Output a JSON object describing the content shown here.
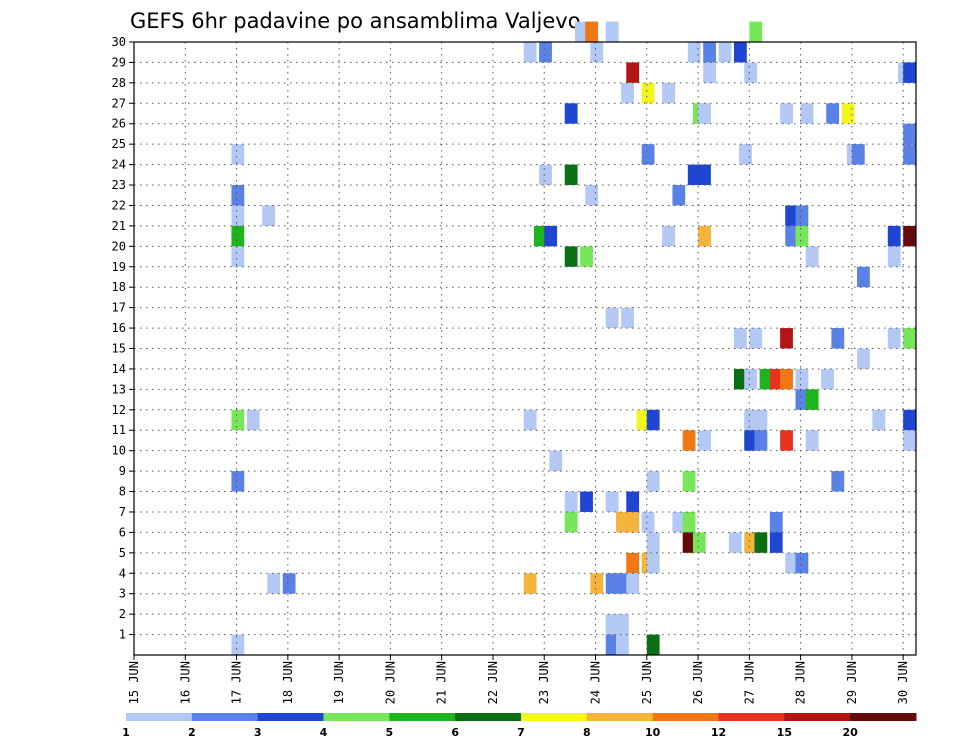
{
  "chart_data": {
    "type": "heatmap",
    "title": "GEFS 6hr padavine po ansamblima Valjevo",
    "x_tick_labels": [
      "15 JUN",
      "16 JUN",
      "17 JUN",
      "18 JUN",
      "19 JUN",
      "20 JUN",
      "21 JUN",
      "22 JUN",
      "23 JUN",
      "24 JUN",
      "25 JUN",
      "26 JUN",
      "27 JUN",
      "28 JUN",
      "29 JUN",
      "30 JUN"
    ],
    "y_tick_labels": [
      "1",
      "2",
      "3",
      "4",
      "5",
      "6",
      "7",
      "8",
      "9",
      "10",
      "11",
      "12",
      "13",
      "14",
      "15",
      "16",
      "17",
      "18",
      "19",
      "20",
      "21",
      "22",
      "23",
      "24",
      "25",
      "26",
      "27",
      "28",
      "29",
      "30"
    ],
    "x_range_days": [
      15,
      30.25
    ],
    "y_range": [
      0,
      30
    ],
    "grid": true,
    "colorbar": {
      "labels": [
        "1",
        "2",
        "3",
        "4",
        "5",
        "6",
        "7",
        "8",
        "10",
        "12",
        "15",
        "20"
      ],
      "colors": [
        "#b4c8f5",
        "#5a82e6",
        "#1e46d2",
        "#78e65a",
        "#1eb41e",
        "#0a6e14",
        "#f5f51e",
        "#f5b43c",
        "#f07814",
        "#e6321e",
        "#b41414",
        "#640a0a"
      ]
    },
    "cells": [
      [
        30,
        23.6,
        "#b4c8f5"
      ],
      [
        30,
        23.8,
        "#f07814"
      ],
      [
        30,
        24.2,
        "#b4c8f5"
      ],
      [
        30,
        27.0,
        "#78e65a"
      ],
      [
        29,
        22.6,
        "#b4c8f5"
      ],
      [
        29,
        22.9,
        "#5a82e6"
      ],
      [
        29,
        23.9,
        "#b4c8f5"
      ],
      [
        29,
        25.8,
        "#b4c8f5"
      ],
      [
        29,
        26.1,
        "#5a82e6"
      ],
      [
        29,
        26.4,
        "#b4c8f5"
      ],
      [
        29,
        26.7,
        "#1e46d2"
      ],
      [
        28,
        24.6,
        "#b41414"
      ],
      [
        28,
        26.1,
        "#b4c8f5"
      ],
      [
        28,
        26.9,
        "#b4c8f5"
      ],
      [
        28,
        29.9,
        "#b4c8f5"
      ],
      [
        28,
        30.0,
        "#1e46d2"
      ],
      [
        27,
        24.5,
        "#b4c8f5"
      ],
      [
        27,
        24.9,
        "#f5f51e"
      ],
      [
        27,
        25.3,
        "#b4c8f5"
      ],
      [
        26,
        23.4,
        "#1e46d2"
      ],
      [
        26,
        25.9,
        "#78e65a"
      ],
      [
        26,
        26.0,
        "#b4c8f5"
      ],
      [
        26,
        27.6,
        "#b4c8f5"
      ],
      [
        26,
        28.0,
        "#b4c8f5"
      ],
      [
        26,
        28.5,
        "#5a82e6"
      ],
      [
        26,
        28.8,
        "#f5f51e"
      ],
      [
        25,
        30.0,
        "#5a82e6"
      ],
      [
        24,
        16.9,
        "#b4c8f5"
      ],
      [
        24,
        24.9,
        "#5a82e6"
      ],
      [
        24,
        26.8,
        "#b4c8f5"
      ],
      [
        24,
        28.9,
        "#b4c8f5"
      ],
      [
        24,
        29.0,
        "#5a82e6"
      ],
      [
        24,
        30.0,
        "#5a82e6"
      ],
      [
        23,
        22.9,
        "#b4c8f5"
      ],
      [
        23,
        23.4,
        "#0a6e14"
      ],
      [
        23,
        25.8,
        "#1e46d2"
      ],
      [
        23,
        26.0,
        "#1e46d2"
      ],
      [
        22,
        16.9,
        "#5a82e6"
      ],
      [
        22,
        23.8,
        "#b4c8f5"
      ],
      [
        22,
        25.5,
        "#5a82e6"
      ],
      [
        21,
        16.9,
        "#b4c8f5"
      ],
      [
        21,
        17.5,
        "#b4c8f5"
      ],
      [
        21,
        27.7,
        "#1e46d2"
      ],
      [
        21,
        27.9,
        "#5a82e6"
      ],
      [
        20,
        16.9,
        "#1eb41e"
      ],
      [
        20,
        22.8,
        "#1eb41e"
      ],
      [
        20,
        23.0,
        "#1e46d2"
      ],
      [
        20,
        25.3,
        "#b4c8f5"
      ],
      [
        20,
        26.0,
        "#f5b43c"
      ],
      [
        20,
        27.7,
        "#5a82e6"
      ],
      [
        20,
        27.9,
        "#78e65a"
      ],
      [
        20,
        29.7,
        "#1e46d2"
      ],
      [
        20,
        30.0,
        "#640a0a"
      ],
      [
        19,
        16.9,
        "#b4c8f5"
      ],
      [
        19,
        23.4,
        "#0a6e14"
      ],
      [
        19,
        23.7,
        "#78e65a"
      ],
      [
        19,
        28.1,
        "#b4c8f5"
      ],
      [
        19,
        29.7,
        "#b4c8f5"
      ],
      [
        18,
        29.1,
        "#5a82e6"
      ],
      [
        16,
        24.2,
        "#b4c8f5"
      ],
      [
        16,
        24.5,
        "#b4c8f5"
      ],
      [
        15,
        26.7,
        "#b4c8f5"
      ],
      [
        15,
        27.0,
        "#b4c8f5"
      ],
      [
        15,
        27.6,
        "#b41414"
      ],
      [
        15,
        28.6,
        "#5a82e6"
      ],
      [
        15,
        29.7,
        "#b4c8f5"
      ],
      [
        15,
        30.0,
        "#78e65a"
      ],
      [
        14,
        29.1,
        "#b4c8f5"
      ],
      [
        13,
        26.7,
        "#0a6e14"
      ],
      [
        13,
        26.9,
        "#b4c8f5"
      ],
      [
        13,
        27.2,
        "#1eb41e"
      ],
      [
        13,
        27.4,
        "#e6321e"
      ],
      [
        13,
        27.6,
        "#f07814"
      ],
      [
        13,
        27.9,
        "#b4c8f5"
      ],
      [
        13,
        28.4,
        "#b4c8f5"
      ],
      [
        12,
        27.9,
        "#5a82e6"
      ],
      [
        12,
        28.1,
        "#1eb41e"
      ],
      [
        11,
        16.9,
        "#78e65a"
      ],
      [
        11,
        17.2,
        "#b4c8f5"
      ],
      [
        11,
        22.6,
        "#b4c8f5"
      ],
      [
        11,
        24.8,
        "#f5f51e"
      ],
      [
        11,
        25.0,
        "#1e46d2"
      ],
      [
        11,
        26.9,
        "#b4c8f5"
      ],
      [
        11,
        27.1,
        "#b4c8f5"
      ],
      [
        11,
        29.4,
        "#b4c8f5"
      ],
      [
        11,
        30.0,
        "#1e46d2"
      ],
      [
        10,
        25.7,
        "#f07814"
      ],
      [
        10,
        26.0,
        "#b4c8f5"
      ],
      [
        10,
        26.9,
        "#1e46d2"
      ],
      [
        10,
        27.1,
        "#5a82e6"
      ],
      [
        10,
        27.6,
        "#e6321e"
      ],
      [
        10,
        28.1,
        "#b4c8f5"
      ],
      [
        10,
        30.0,
        "#b4c8f5"
      ],
      [
        9,
        23.1,
        "#b4c8f5"
      ],
      [
        8,
        16.9,
        "#5a82e6"
      ],
      [
        8,
        25.0,
        "#b4c8f5"
      ],
      [
        8,
        25.7,
        "#78e65a"
      ],
      [
        8,
        28.6,
        "#5a82e6"
      ],
      [
        7,
        23.4,
        "#b4c8f5"
      ],
      [
        7,
        23.7,
        "#1e46d2"
      ],
      [
        7,
        24.2,
        "#b4c8f5"
      ],
      [
        7,
        24.6,
        "#1e46d2"
      ],
      [
        6,
        23.4,
        "#78e65a"
      ],
      [
        6,
        24.4,
        "#f5b43c"
      ],
      [
        6,
        24.6,
        "#f5b43c"
      ],
      [
        6,
        24.9,
        "#b4c8f5"
      ],
      [
        6,
        25.5,
        "#b4c8f5"
      ],
      [
        6,
        25.7,
        "#78e65a"
      ],
      [
        6,
        27.4,
        "#5a82e6"
      ],
      [
        5,
        25.0,
        "#b4c8f5"
      ],
      [
        5,
        25.7,
        "#640a0a"
      ],
      [
        5,
        25.9,
        "#78e65a"
      ],
      [
        5,
        26.6,
        "#b4c8f5"
      ],
      [
        5,
        26.9,
        "#f5b43c"
      ],
      [
        5,
        27.1,
        "#0a6e14"
      ],
      [
        5,
        27.4,
        "#1e46d2"
      ],
      [
        4,
        24.6,
        "#f07814"
      ],
      [
        4,
        24.9,
        "#f5b43c"
      ],
      [
        4,
        25.0,
        "#b4c8f5"
      ],
      [
        4,
        27.7,
        "#b4c8f5"
      ],
      [
        4,
        27.9,
        "#5a82e6"
      ],
      [
        3,
        17.6,
        "#b4c8f5"
      ],
      [
        3,
        17.9,
        "#5a82e6"
      ],
      [
        3,
        22.6,
        "#f5b43c"
      ],
      [
        3,
        23.9,
        "#f5b43c"
      ],
      [
        3,
        24.2,
        "#5a82e6"
      ],
      [
        3,
        24.4,
        "#5a82e6"
      ],
      [
        3,
        24.6,
        "#b4c8f5"
      ],
      [
        1,
        24.2,
        "#b4c8f5"
      ],
      [
        1,
        24.4,
        "#b4c8f5"
      ],
      [
        0,
        16.9,
        "#b4c8f5"
      ],
      [
        0,
        24.2,
        "#5a82e6"
      ],
      [
        0,
        24.4,
        "#b4c8f5"
      ],
      [
        0,
        25.0,
        "#0a6e14"
      ]
    ]
  }
}
